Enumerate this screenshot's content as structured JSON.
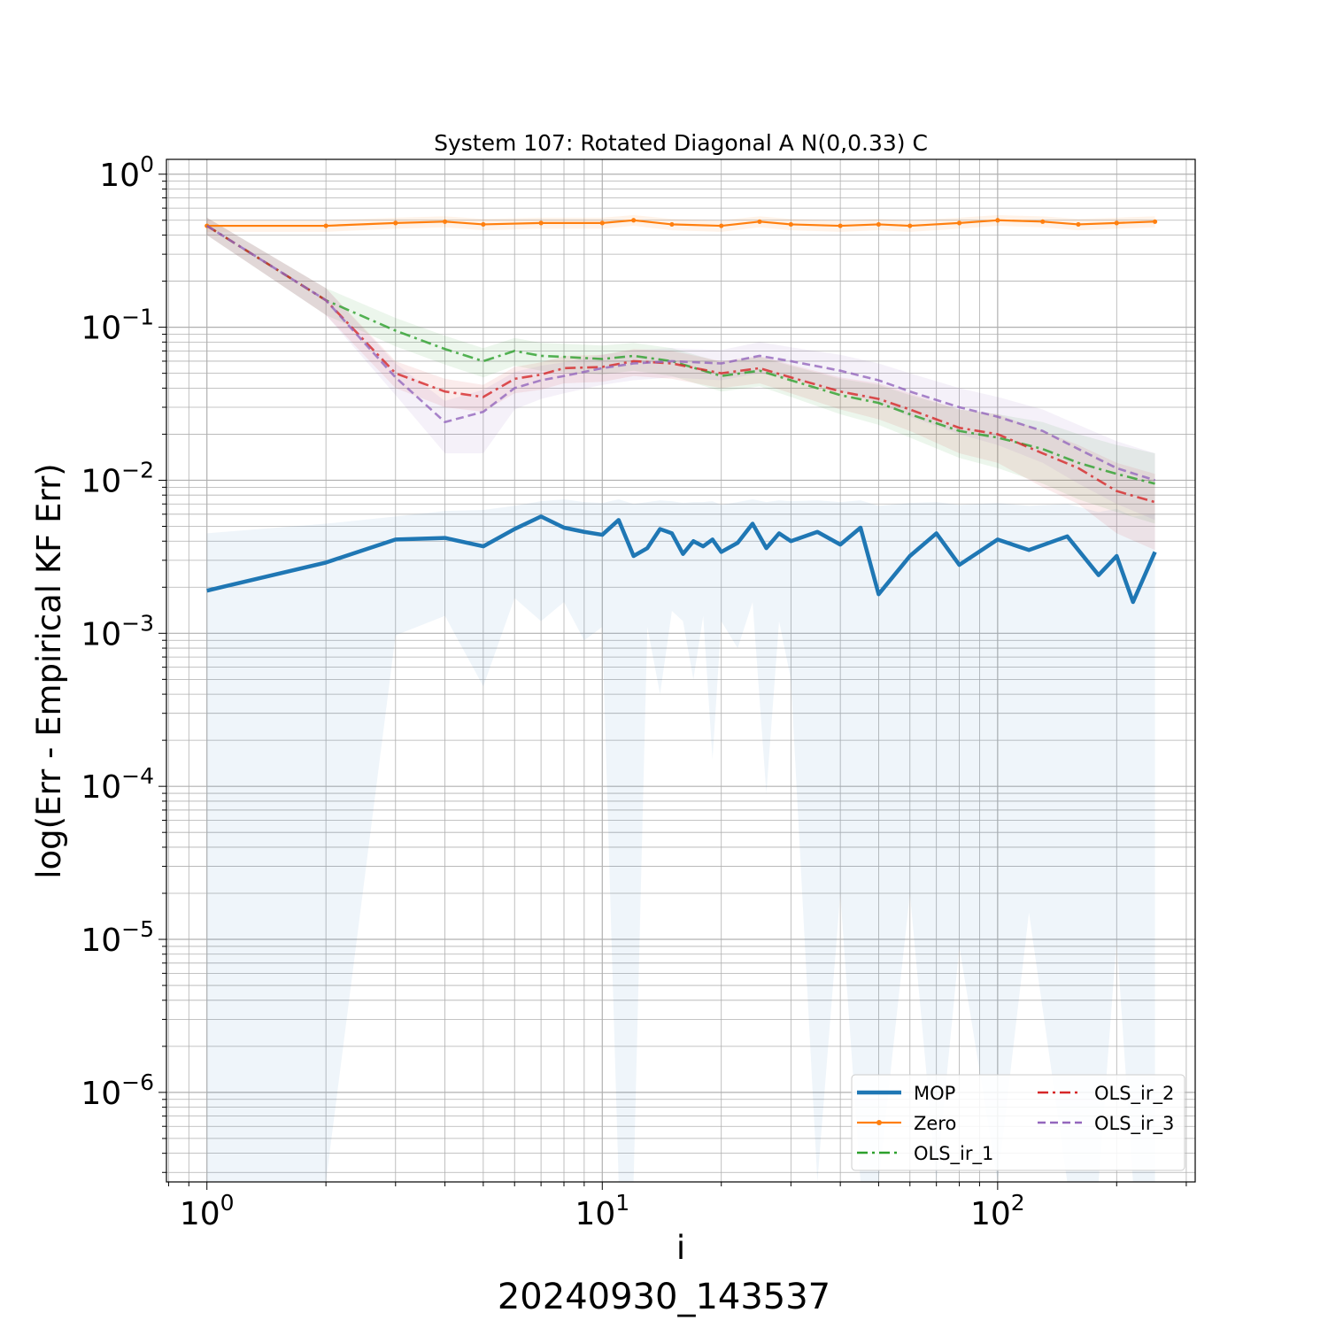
{
  "chart_data": {
    "type": "line",
    "title": "System 107: Rotated Diagonal A N(0,0.33) C",
    "xlabel": "i",
    "ylabel": "log(Err - Empirical KF Err)",
    "footer": "20240930_143537",
    "x_scale": "log",
    "y_scale": "log",
    "xlim": [
      0.79,
      316
    ],
    "ylim": [
      2.6e-07,
      1.25
    ],
    "x_ticks": [
      {
        "value": 1,
        "mantissa": "10",
        "exponent": "0"
      },
      {
        "value": 10,
        "mantissa": "10",
        "exponent": "1"
      },
      {
        "value": 100,
        "mantissa": "10",
        "exponent": "2"
      }
    ],
    "y_ticks": [
      {
        "value": 1,
        "mantissa": "10",
        "exponent": "0"
      },
      {
        "value": 0.1,
        "mantissa": "10",
        "exponent": "−1"
      },
      {
        "value": 0.01,
        "mantissa": "10",
        "exponent": "−2"
      },
      {
        "value": 0.001,
        "mantissa": "10",
        "exponent": "−3"
      },
      {
        "value": 0.0001,
        "mantissa": "10",
        "exponent": "−4"
      },
      {
        "value": 1e-05,
        "mantissa": "10",
        "exponent": "−5"
      },
      {
        "value": 1e-06,
        "mantissa": "10",
        "exponent": "−6"
      }
    ],
    "grid": true,
    "legend_position": "lower-right",
    "series": [
      {
        "name": "MOP",
        "color": "#1f77b4",
        "style": "solid-thick",
        "x": [
          1,
          2,
          3,
          4,
          5,
          6,
          7,
          8,
          9,
          10,
          11,
          12,
          13,
          14,
          15,
          16,
          17,
          18,
          19,
          20,
          22,
          24,
          26,
          28,
          30,
          35,
          40,
          45,
          50,
          60,
          70,
          80,
          100,
          120,
          150,
          180,
          200,
          220,
          250
        ],
        "y": [
          0.0019,
          0.0029,
          0.0041,
          0.0042,
          0.0037,
          0.0048,
          0.0058,
          0.0049,
          0.0046,
          0.0044,
          0.0055,
          0.0032,
          0.0036,
          0.0048,
          0.0045,
          0.0033,
          0.004,
          0.0037,
          0.0041,
          0.0034,
          0.0039,
          0.0052,
          0.0036,
          0.0045,
          0.004,
          0.0046,
          0.0038,
          0.0049,
          0.0018,
          0.0032,
          0.0045,
          0.0028,
          0.0041,
          0.0035,
          0.0043,
          0.0024,
          0.0032,
          0.0016,
          0.0034
        ],
        "band_low": [
          2.6e-07,
          2.6e-07,
          0.00097,
          0.0013,
          0.00045,
          0.0017,
          0.0012,
          0.0016,
          0.0009,
          0.0011,
          2.6e-07,
          2.6e-07,
          0.0011,
          0.0004,
          0.0014,
          0.0012,
          0.0005,
          0.0013,
          0.00015,
          0.0012,
          0.0008,
          0.0016,
          9e-05,
          0.0012,
          0.0005,
          2.6e-07,
          2e-05,
          2.6e-07,
          2.6e-07,
          2e-05,
          2.6e-07,
          9e-06,
          2.6e-07,
          1.5e-05,
          2.6e-07,
          2.6e-07,
          1e-05,
          2.6e-07,
          2.6e-07
        ],
        "band_high": [
          0.0045,
          0.0052,
          0.0058,
          0.0063,
          0.0064,
          0.0068,
          0.0073,
          0.0075,
          0.0072,
          0.0071,
          0.0075,
          0.007,
          0.0072,
          0.0074,
          0.0073,
          0.0071,
          0.0072,
          0.0072,
          0.0073,
          0.0069,
          0.0072,
          0.0075,
          0.0072,
          0.0074,
          0.0073,
          0.0074,
          0.0072,
          0.0074,
          0.0068,
          0.0071,
          0.0072,
          0.0069,
          0.0071,
          0.0068,
          0.007,
          0.0062,
          0.0065,
          0.0058,
          0.006
        ]
      },
      {
        "name": "Zero",
        "color": "#ff7f0e",
        "style": "solid-markers",
        "x": [
          1,
          2,
          3,
          4,
          5,
          7,
          10,
          12,
          15,
          20,
          25,
          30,
          40,
          50,
          60,
          80,
          100,
          130,
          160,
          200,
          250
        ],
        "y": [
          0.46,
          0.46,
          0.48,
          0.49,
          0.47,
          0.48,
          0.48,
          0.5,
          0.47,
          0.46,
          0.49,
          0.47,
          0.46,
          0.47,
          0.46,
          0.48,
          0.5,
          0.49,
          0.47,
          0.48,
          0.49
        ],
        "band_low": [
          0.42,
          0.42,
          0.44,
          0.45,
          0.43,
          0.44,
          0.44,
          0.46,
          0.43,
          0.42,
          0.45,
          0.43,
          0.42,
          0.43,
          0.42,
          0.44,
          0.46,
          0.45,
          0.43,
          0.44,
          0.45
        ],
        "band_high": [
          0.5,
          0.5,
          0.52,
          0.53,
          0.51,
          0.52,
          0.52,
          0.54,
          0.51,
          0.5,
          0.53,
          0.51,
          0.5,
          0.51,
          0.5,
          0.52,
          0.54,
          0.53,
          0.51,
          0.52,
          0.53
        ]
      },
      {
        "name": "OLS_ir_1",
        "color": "#2ca02c",
        "style": "dashdot",
        "x": [
          1,
          2,
          3,
          4,
          5,
          6,
          7,
          8,
          10,
          12,
          15,
          20,
          25,
          30,
          40,
          50,
          60,
          80,
          100,
          130,
          160,
          200,
          250
        ],
        "y": [
          0.46,
          0.15,
          0.095,
          0.072,
          0.06,
          0.07,
          0.065,
          0.064,
          0.062,
          0.065,
          0.06,
          0.048,
          0.052,
          0.045,
          0.036,
          0.032,
          0.027,
          0.021,
          0.019,
          0.016,
          0.013,
          0.011,
          0.0095
        ],
        "band_low": [
          0.4,
          0.12,
          0.075,
          0.057,
          0.047,
          0.056,
          0.052,
          0.051,
          0.049,
          0.052,
          0.048,
          0.038,
          0.041,
          0.035,
          0.027,
          0.023,
          0.019,
          0.014,
          0.012,
          0.0095,
          0.0075,
          0.0062,
          0.0052
        ],
        "band_high": [
          0.52,
          0.18,
          0.115,
          0.088,
          0.073,
          0.085,
          0.079,
          0.078,
          0.076,
          0.079,
          0.073,
          0.059,
          0.064,
          0.056,
          0.046,
          0.042,
          0.036,
          0.029,
          0.027,
          0.024,
          0.02,
          0.017,
          0.015
        ]
      },
      {
        "name": "OLS_ir_2",
        "color": "#d62728",
        "style": "dashdot",
        "x": [
          1,
          2,
          3,
          4,
          5,
          6,
          7,
          8,
          10,
          12,
          15,
          20,
          25,
          30,
          40,
          50,
          60,
          80,
          100,
          130,
          160,
          200,
          250
        ],
        "y": [
          0.46,
          0.15,
          0.05,
          0.038,
          0.035,
          0.046,
          0.049,
          0.054,
          0.055,
          0.06,
          0.058,
          0.05,
          0.054,
          0.047,
          0.038,
          0.034,
          0.029,
          0.022,
          0.02,
          0.015,
          0.012,
          0.0085,
          0.0072
        ],
        "band_low": [
          0.4,
          0.12,
          0.04,
          0.03,
          0.028,
          0.037,
          0.039,
          0.043,
          0.044,
          0.048,
          0.046,
          0.04,
          0.043,
          0.037,
          0.029,
          0.025,
          0.021,
          0.015,
          0.013,
          0.009,
          0.007,
          0.0045,
          0.0035
        ],
        "band_high": [
          0.52,
          0.18,
          0.06,
          0.046,
          0.042,
          0.055,
          0.059,
          0.065,
          0.066,
          0.072,
          0.07,
          0.06,
          0.065,
          0.057,
          0.047,
          0.043,
          0.037,
          0.029,
          0.027,
          0.021,
          0.017,
          0.013,
          0.011
        ]
      },
      {
        "name": "OLS_ir_3",
        "color": "#9467bd",
        "style": "dashed",
        "x": [
          1,
          2,
          3,
          4,
          5,
          6,
          7,
          8,
          10,
          12,
          15,
          20,
          25,
          30,
          40,
          50,
          60,
          80,
          100,
          130,
          160,
          200,
          250
        ],
        "y": [
          0.46,
          0.15,
          0.047,
          0.024,
          0.028,
          0.04,
          0.045,
          0.048,
          0.054,
          0.058,
          0.06,
          0.058,
          0.065,
          0.06,
          0.052,
          0.045,
          0.038,
          0.03,
          0.026,
          0.021,
          0.016,
          0.012,
          0.01
        ],
        "band_low": [
          0.4,
          0.12,
          0.036,
          0.015,
          0.015,
          0.029,
          0.034,
          0.037,
          0.042,
          0.045,
          0.047,
          0.045,
          0.05,
          0.046,
          0.038,
          0.032,
          0.026,
          0.02,
          0.017,
          0.013,
          0.0095,
          0.007,
          0.0055
        ],
        "band_high": [
          0.52,
          0.18,
          0.058,
          0.033,
          0.039,
          0.051,
          0.056,
          0.059,
          0.066,
          0.071,
          0.073,
          0.071,
          0.08,
          0.074,
          0.066,
          0.058,
          0.05,
          0.04,
          0.035,
          0.029,
          0.023,
          0.018,
          0.015
        ]
      }
    ]
  }
}
